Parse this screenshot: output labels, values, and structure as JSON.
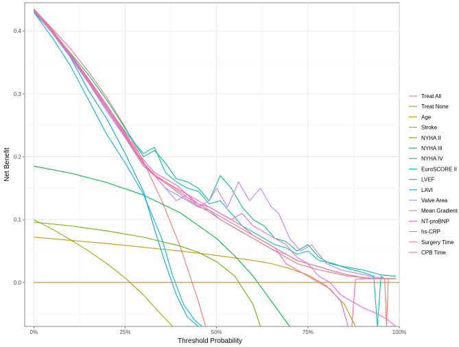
{
  "chart_data": {
    "type": "line",
    "title": "",
    "xlabel": "Threshold Probability",
    "ylabel": "Net Benefit",
    "xlim": [
      -0.025,
      1.0
    ],
    "ylim": [
      -0.07,
      0.445
    ],
    "x_ticks": [
      0,
      0.25,
      0.5,
      0.75,
      1.0
    ],
    "x_tick_labels": [
      "0%",
      "25%",
      "50%",
      "75%",
      "100%"
    ],
    "y_ticks": [
      0,
      0.1,
      0.2,
      0.3,
      0.4
    ],
    "y_tick_labels": [
      "0.0",
      "0.1",
      "0.2",
      "0.3",
      "0.4"
    ],
    "grid": true,
    "legend_position": "right",
    "series": [
      {
        "name": "Treat All",
        "color": "#F8766D",
        "x": [
          0,
          0.05,
          0.1,
          0.15,
          0.2,
          0.25,
          0.3,
          0.35,
          0.4,
          0.45,
          0.47
        ],
        "y": [
          0.435,
          0.404,
          0.372,
          0.335,
          0.294,
          0.247,
          0.192,
          0.13,
          0.058,
          -0.03,
          -0.07
        ]
      },
      {
        "name": "Treat None",
        "color": "#E58700",
        "x": [
          0,
          1
        ],
        "y": [
          0,
          0
        ]
      },
      {
        "name": "Age",
        "color": "#C99800",
        "x": [
          0,
          0.1,
          0.2,
          0.3,
          0.4,
          0.5,
          0.6,
          0.65,
          0.7,
          0.75,
          0.8,
          0.85,
          0.88
        ],
        "y": [
          0.072,
          0.067,
          0.062,
          0.056,
          0.05,
          0.043,
          0.035,
          0.03,
          0.022,
          0.012,
          -0.005,
          -0.035,
          -0.07
        ]
      },
      {
        "name": "Stroke",
        "color": "#A3A500",
        "x": [
          0,
          0.05,
          0.1,
          0.15,
          0.2,
          0.25,
          0.3,
          0.35,
          0.38
        ],
        "y": [
          0.1,
          0.085,
          0.068,
          0.05,
          0.03,
          0.007,
          -0.02,
          -0.052,
          -0.07
        ]
      },
      {
        "name": "NYHA II",
        "color": "#6BB100",
        "x": [
          0,
          0.1,
          0.2,
          0.3,
          0.4,
          0.45,
          0.5,
          0.55,
          0.6,
          0.62
        ],
        "y": [
          0.096,
          0.09,
          0.082,
          0.072,
          0.058,
          0.048,
          0.033,
          0.01,
          -0.035,
          -0.07
        ]
      },
      {
        "name": "NYHA III",
        "color": "#00BA38",
        "x": [
          0,
          0.1,
          0.2,
          0.3,
          0.4,
          0.5,
          0.55,
          0.6,
          0.65,
          0.7
        ],
        "y": [
          0.185,
          0.174,
          0.159,
          0.139,
          0.111,
          0.07,
          0.042,
          0.01,
          -0.03,
          -0.07
        ]
      },
      {
        "name": "NYHA IV",
        "color": "#00BF7D",
        "x": [
          0,
          0.05,
          0.1,
          0.15,
          0.2,
          0.25,
          0.3,
          0.33,
          0.36,
          0.39,
          0.42,
          0.45,
          0.48,
          0.51,
          0.54,
          0.57,
          0.6,
          0.63,
          0.66,
          0.69,
          0.72,
          0.75,
          0.78,
          0.81,
          0.85,
          0.9,
          0.95,
          0.99
        ],
        "y": [
          0.433,
          0.4,
          0.365,
          0.33,
          0.29,
          0.245,
          0.2,
          0.21,
          0.19,
          0.165,
          0.16,
          0.15,
          0.13,
          0.17,
          0.15,
          0.12,
          0.1,
          0.09,
          0.07,
          0.065,
          0.05,
          0.06,
          0.04,
          0.03,
          0.025,
          0.02,
          0.012,
          0.01
        ]
      },
      {
        "name": "EuroSCORE II",
        "color": "#00C0B8",
        "x": [
          0,
          0.05,
          0.1,
          0.15,
          0.2,
          0.25,
          0.3,
          0.33,
          0.36,
          0.39,
          0.42,
          0.45,
          0.48,
          0.51,
          0.54,
          0.57,
          0.6,
          0.63,
          0.66,
          0.69,
          0.72,
          0.75,
          0.78,
          0.82,
          0.86,
          0.9,
          0.93,
          0.94,
          0.95,
          0.96,
          0.99
        ],
        "y": [
          0.43,
          0.398,
          0.36,
          0.322,
          0.28,
          0.24,
          0.205,
          0.215,
          0.175,
          0.16,
          0.15,
          0.145,
          0.125,
          0.13,
          0.11,
          0.09,
          0.08,
          0.07,
          0.06,
          0.055,
          0.045,
          0.05,
          0.035,
          0.03,
          0.022,
          0.016,
          0.01,
          -0.07,
          0.01,
          0.006,
          0.006
        ]
      },
      {
        "name": "LVEF",
        "color": "#00B4EF",
        "x": [
          0,
          0.05,
          0.1,
          0.15,
          0.2,
          0.25,
          0.3,
          0.35,
          0.38,
          0.41,
          0.44,
          0.46
        ],
        "y": [
          0.43,
          0.39,
          0.345,
          0.29,
          0.235,
          0.19,
          0.14,
          0.07,
          0.01,
          -0.035,
          -0.06,
          -0.07
        ]
      },
      {
        "name": "LAVI",
        "color": "#00A5FF",
        "x": [
          0,
          0.05,
          0.1,
          0.15,
          0.2,
          0.25,
          0.3,
          0.33,
          0.36,
          0.39,
          0.42,
          0.45
        ],
        "y": [
          0.432,
          0.397,
          0.358,
          0.305,
          0.26,
          0.205,
          0.145,
          0.085,
          0.03,
          -0.02,
          -0.055,
          -0.07
        ]
      },
      {
        "name": "Valve Area",
        "color": "#7997FF",
        "x": [
          0,
          0.05,
          0.1,
          0.15,
          0.2,
          0.25,
          0.3,
          0.33,
          0.36,
          0.39,
          0.42,
          0.45,
          0.48,
          0.51,
          0.54,
          0.57,
          0.6,
          0.63,
          0.66,
          0.69,
          0.72,
          0.75,
          0.78,
          0.82,
          0.86,
          0.9,
          0.94,
          0.99
        ],
        "y": [
          0.432,
          0.398,
          0.36,
          0.318,
          0.275,
          0.232,
          0.185,
          0.17,
          0.15,
          0.14,
          0.13,
          0.12,
          0.115,
          0.1,
          0.09,
          0.08,
          0.07,
          0.06,
          0.05,
          0.045,
          0.035,
          0.03,
          0.025,
          0.018,
          0.012,
          0.008,
          0.006,
          0.006
        ]
      },
      {
        "name": "Mean Gradient",
        "color": "#C77CFF",
        "x": [
          0,
          0.05,
          0.1,
          0.15,
          0.2,
          0.25,
          0.3,
          0.33,
          0.36,
          0.39,
          0.42,
          0.45,
          0.48,
          0.5,
          0.53,
          0.56,
          0.59,
          0.62,
          0.65,
          0.67,
          0.7,
          0.73,
          0.76,
          0.8,
          0.84,
          0.88,
          0.92,
          0.96,
          0.99
        ],
        "y": [
          0.432,
          0.397,
          0.358,
          0.317,
          0.272,
          0.23,
          0.185,
          0.17,
          0.15,
          0.13,
          0.14,
          0.12,
          0.13,
          0.15,
          0.12,
          0.16,
          0.13,
          0.15,
          0.12,
          0.11,
          0.07,
          0.05,
          0.06,
          0.03,
          0.02,
          0.015,
          0.01,
          0.006,
          0.006
        ]
      },
      {
        "name": "NT-proBNP",
        "color": "#F564E3",
        "x": [
          0,
          0.05,
          0.1,
          0.15,
          0.2,
          0.25,
          0.3,
          0.33,
          0.36,
          0.39,
          0.42,
          0.45,
          0.48,
          0.51,
          0.54,
          0.57,
          0.6,
          0.63,
          0.66,
          0.69,
          0.72,
          0.75,
          0.78,
          0.81,
          0.84,
          0.87,
          0.9,
          0.94,
          0.97,
          0.99
        ],
        "y": [
          0.433,
          0.4,
          0.363,
          0.322,
          0.28,
          0.235,
          0.19,
          0.17,
          0.16,
          0.15,
          0.14,
          0.13,
          0.12,
          0.11,
          0.1,
          0.11,
          0.09,
          0.08,
          0.07,
          0.06,
          0.04,
          0.03,
          0.01,
          0.0,
          -0.02,
          -0.03,
          -0.04,
          -0.05,
          -0.06,
          -0.07
        ]
      },
      {
        "name": "hs-CRP",
        "color": "#FF64B0",
        "x": [
          0,
          0.05,
          0.1,
          0.15,
          0.2,
          0.25,
          0.3,
          0.33,
          0.36,
          0.39,
          0.42,
          0.45,
          0.48,
          0.51,
          0.54,
          0.57,
          0.6,
          0.63,
          0.66,
          0.69,
          0.72,
          0.75,
          0.78,
          0.81,
          0.84,
          0.86,
          0.87,
          0.88,
          0.9,
          0.93,
          0.97,
          0.99
        ],
        "y": [
          0.435,
          0.402,
          0.364,
          0.324,
          0.282,
          0.238,
          0.195,
          0.175,
          0.165,
          0.155,
          0.14,
          0.125,
          0.12,
          0.11,
          0.1,
          0.09,
          0.075,
          0.065,
          0.055,
          0.03,
          0.02,
          0.01,
          0.0,
          -0.01,
          -0.03,
          -0.07,
          -0.07,
          0.005,
          0.006,
          0.006,
          0.006,
          0.006
        ]
      },
      {
        "name": "Surgery Time",
        "color": "#FF6C91",
        "x": [
          0,
          0.05,
          0.1,
          0.15,
          0.2,
          0.25,
          0.3,
          0.33,
          0.36,
          0.39,
          0.42,
          0.45,
          0.48,
          0.51,
          0.54,
          0.57,
          0.6,
          0.63,
          0.66,
          0.69,
          0.72,
          0.75,
          0.78,
          0.82,
          0.86,
          0.9,
          0.94,
          0.99
        ],
        "y": [
          0.434,
          0.401,
          0.363,
          0.322,
          0.28,
          0.236,
          0.19,
          0.172,
          0.16,
          0.148,
          0.135,
          0.125,
          0.115,
          0.105,
          0.095,
          0.085,
          0.075,
          0.065,
          0.055,
          0.045,
          0.035,
          0.03,
          0.025,
          0.018,
          0.012,
          0.008,
          0.006,
          0.006
        ]
      },
      {
        "name": "CPB Time",
        "color": "#F8766D",
        "x": [
          0,
          0.05,
          0.1,
          0.15,
          0.2,
          0.25,
          0.3,
          0.33,
          0.36,
          0.39,
          0.42,
          0.45,
          0.48,
          0.51,
          0.54,
          0.57,
          0.6,
          0.63,
          0.66,
          0.69,
          0.72,
          0.75,
          0.78,
          0.82,
          0.86,
          0.9,
          0.94,
          0.96,
          0.965,
          0.97,
          0.99
        ],
        "y": [
          0.434,
          0.4,
          0.362,
          0.32,
          0.277,
          0.233,
          0.188,
          0.17,
          0.158,
          0.145,
          0.132,
          0.122,
          0.112,
          0.1,
          0.09,
          0.08,
          0.07,
          0.06,
          0.05,
          0.04,
          0.03,
          0.025,
          0.02,
          0.015,
          0.01,
          0.008,
          0.006,
          0.006,
          -0.07,
          0.006,
          0.006
        ]
      }
    ]
  }
}
